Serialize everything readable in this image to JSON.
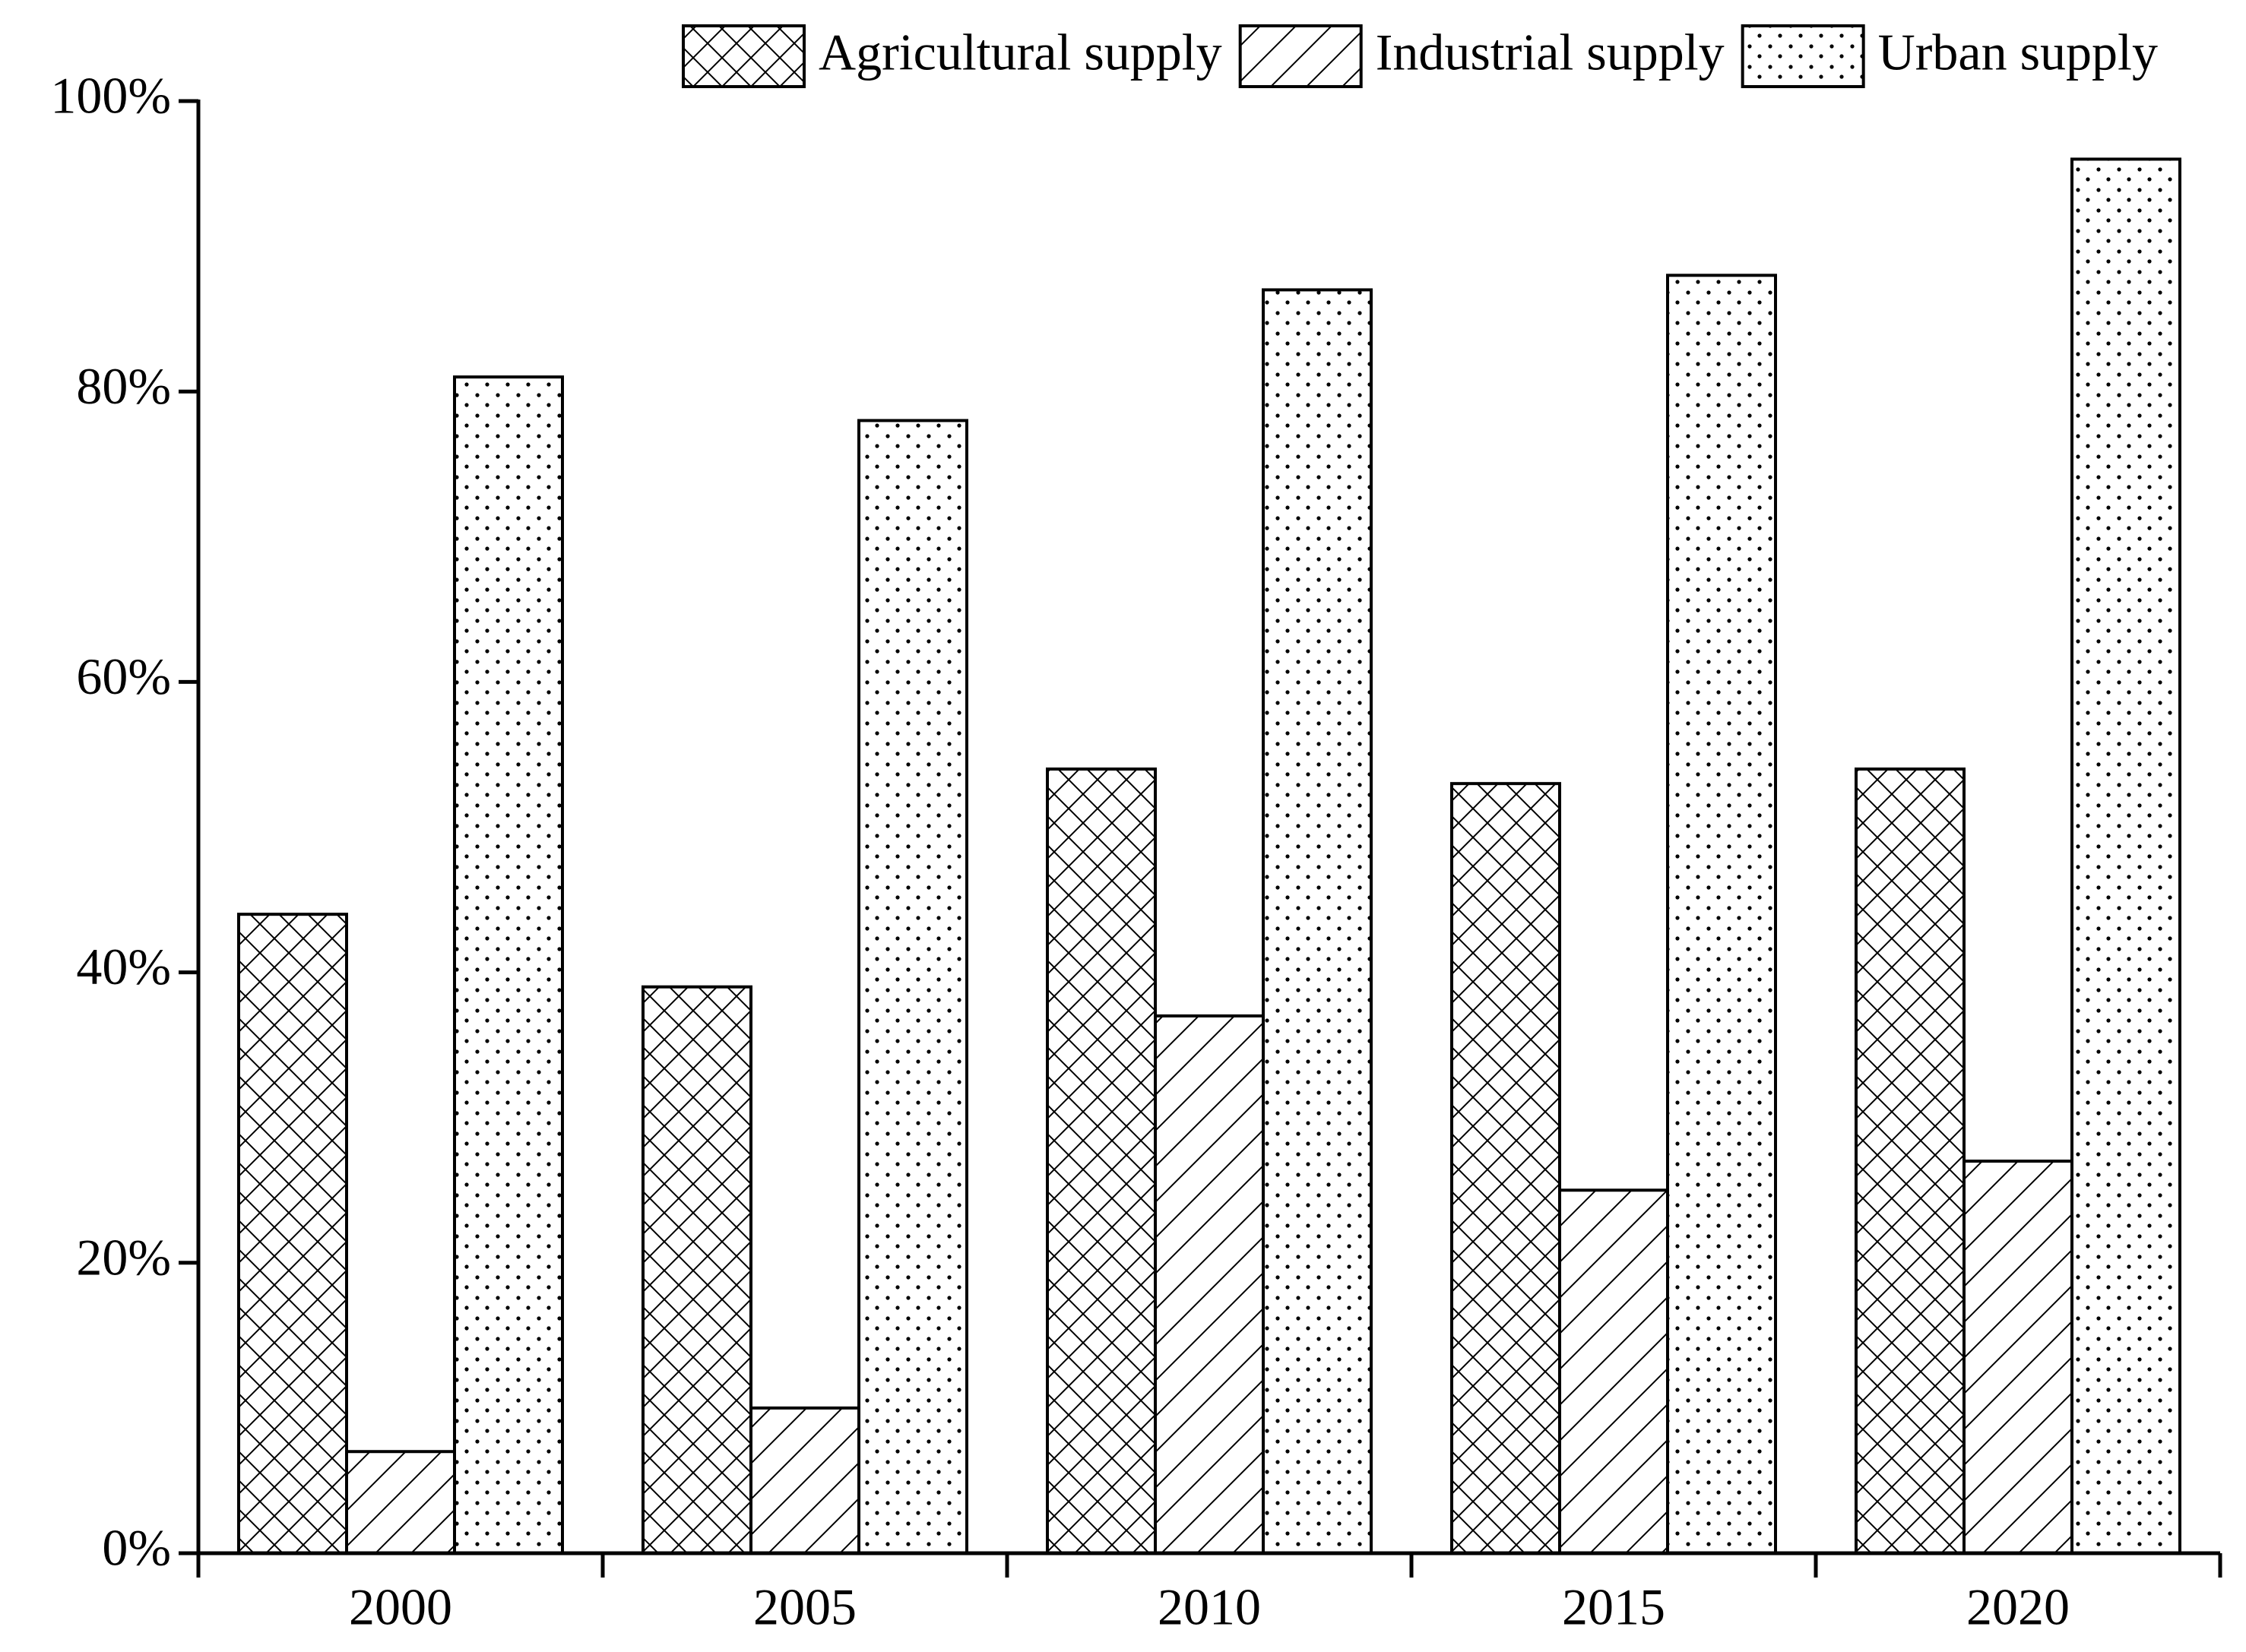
{
  "chart_data": {
    "type": "bar",
    "categories": [
      "2000",
      "2005",
      "2010",
      "2015",
      "2020"
    ],
    "series": [
      {
        "name": "Agricultural supply",
        "pattern": "crosshatch",
        "values": [
          44,
          39,
          54,
          53,
          54
        ]
      },
      {
        "name": "Industrial supply",
        "pattern": "diagonal",
        "values": [
          7,
          10,
          37,
          25,
          27
        ]
      },
      {
        "name": "Urban supply",
        "pattern": "dots",
        "values": [
          81,
          78,
          87,
          88,
          96
        ]
      }
    ],
    "ylim": [
      0,
      100
    ],
    "yticks": [
      {
        "value": 0,
        "label": "0%"
      },
      {
        "value": 20,
        "label": "20%"
      },
      {
        "value": 40,
        "label": "40%"
      },
      {
        "value": 60,
        "label": "60%"
      },
      {
        "value": 80,
        "label": "80%"
      },
      {
        "value": 100,
        "label": "100%"
      }
    ],
    "legend": "top-right"
  }
}
